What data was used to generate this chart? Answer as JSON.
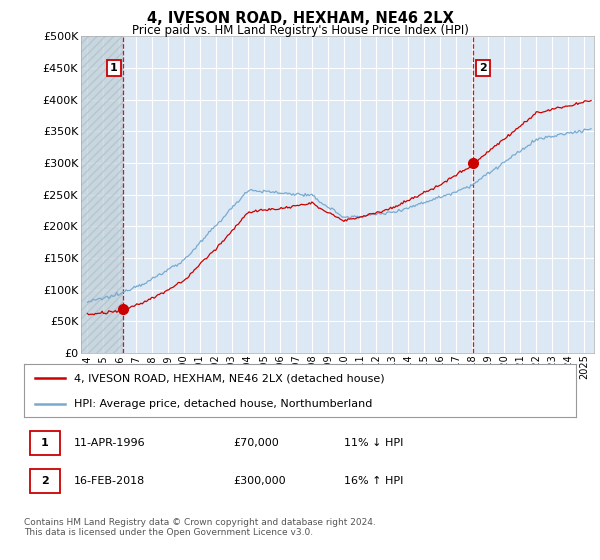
{
  "title": "4, IVESON ROAD, HEXHAM, NE46 2LX",
  "subtitle": "Price paid vs. HM Land Registry's House Price Index (HPI)",
  "ylim": [
    0,
    500000
  ],
  "yticks": [
    0,
    50000,
    100000,
    150000,
    200000,
    250000,
    300000,
    350000,
    400000,
    450000,
    500000
  ],
  "sale1_year": 1996,
  "sale1_month": 4,
  "sale1_price": 70000,
  "sale2_year": 2018,
  "sale2_month": 2,
  "sale2_price": 300000,
  "legend_line1": "4, IVESON ROAD, HEXHAM, NE46 2LX (detached house)",
  "legend_line2": "HPI: Average price, detached house, Northumberland",
  "footer": "Contains HM Land Registry data © Crown copyright and database right 2024.\nThis data is licensed under the Open Government Licence v3.0.",
  "price_color": "#cc0000",
  "hpi_color": "#7aaad0",
  "vline_color": "#cc0000",
  "bg_color": "#ffffff",
  "plot_bg_color": "#dce9f5",
  "grid_color": "#ffffff",
  "hatch_color": "#c0cfd8",
  "start_year": 1994,
  "end_year": 2025
}
